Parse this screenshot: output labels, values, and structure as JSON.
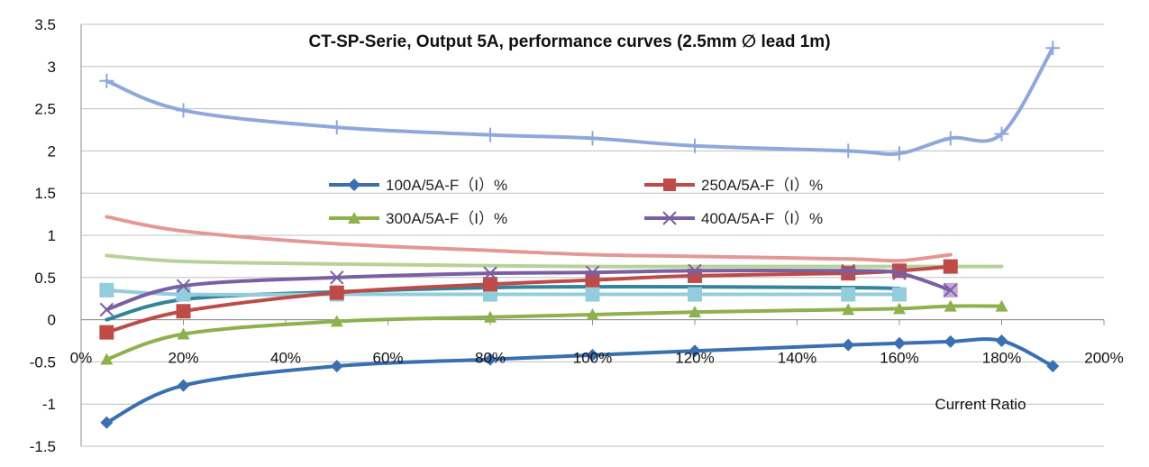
{
  "chart_data": {
    "type": "line",
    "title": "CT-SP-Serie, Output 5A, performance curves (2.5mm ∅ lead 1m)",
    "xlabel": "Current Ratio",
    "ylabel": "",
    "x_ticks": [
      "0%",
      "20%",
      "40%",
      "60%",
      "80%",
      "100%",
      "120%",
      "140%",
      "160%",
      "180%",
      "200%"
    ],
    "y_ticks": [
      "3.5",
      "3",
      "2.5",
      "2",
      "1.5",
      "1",
      "0.5",
      "0",
      "-0.5",
      "-1",
      "-1.5"
    ],
    "xlim": [
      0,
      200
    ],
    "ylim": [
      -1.5,
      3.5
    ],
    "grid": true,
    "legend_position": "center",
    "series": [
      {
        "name": "100A/5A-F（I）%",
        "color": "#3a6fb0",
        "marker": "diamond",
        "show_in_legend": true,
        "x": [
          5,
          20,
          50,
          80,
          100,
          120,
          150,
          160,
          170,
          180,
          190
        ],
        "y": [
          -1.22,
          -0.78,
          -0.55,
          -0.47,
          -0.42,
          -0.37,
          -0.3,
          -0.28,
          -0.26,
          -0.25,
          -0.55
        ]
      },
      {
        "name": "250A/5A-F（I）%",
        "color": "#be4b48",
        "marker": "square",
        "show_in_legend": true,
        "x": [
          5,
          20,
          50,
          80,
          100,
          120,
          150,
          160,
          170
        ],
        "y": [
          -0.15,
          0.1,
          0.32,
          0.42,
          0.47,
          0.52,
          0.55,
          0.58,
          0.63
        ]
      },
      {
        "name": "300A/5A-F（I）%",
        "color": "#8db14c",
        "marker": "triangle",
        "show_in_legend": true,
        "x": [
          5,
          20,
          50,
          80,
          100,
          120,
          150,
          160,
          170,
          180
        ],
        "y": [
          -0.47,
          -0.17,
          -0.02,
          0.03,
          0.06,
          0.09,
          0.12,
          0.13,
          0.16,
          0.16
        ]
      },
      {
        "name": "400A/5A-F（I）%",
        "color": "#7b5fa3",
        "marker": "x",
        "show_in_legend": true,
        "x": [
          5,
          20,
          50,
          80,
          100,
          120,
          150,
          160,
          170
        ],
        "y": [
          0.12,
          0.4,
          0.5,
          0.55,
          0.56,
          0.58,
          0.58,
          0.55,
          0.35
        ]
      },
      {
        "name": "",
        "color": "#8fa8dc",
        "marker": "plus",
        "show_in_legend": false,
        "x": [
          5,
          20,
          50,
          80,
          100,
          120,
          150,
          160,
          170,
          180,
          190
        ],
        "y": [
          2.83,
          2.48,
          2.28,
          2.19,
          2.15,
          2.06,
          2.0,
          1.97,
          2.15,
          2.2,
          3.22
        ]
      },
      {
        "name": "",
        "color": "#e39896",
        "marker": "none",
        "show_in_legend": false,
        "x": [
          5,
          20,
          50,
          80,
          100,
          120,
          150,
          160,
          170
        ],
        "y": [
          1.22,
          1.05,
          0.9,
          0.82,
          0.77,
          0.75,
          0.72,
          0.7,
          0.77
        ]
      },
      {
        "name": "",
        "color": "#b6d397",
        "marker": "none",
        "show_in_legend": false,
        "x": [
          5,
          20,
          50,
          80,
          100,
          120,
          150,
          160,
          170,
          180
        ],
        "y": [
          0.76,
          0.69,
          0.66,
          0.64,
          0.63,
          0.63,
          0.63,
          0.63,
          0.63,
          0.63
        ]
      },
      {
        "name": "",
        "color": "#31849b",
        "marker": "none",
        "show_in_legend": false,
        "x": [
          5,
          20,
          50,
          80,
          100,
          120,
          150,
          160
        ],
        "y": [
          0.0,
          0.24,
          0.33,
          0.38,
          0.39,
          0.39,
          0.38,
          0.37
        ]
      },
      {
        "name": "",
        "color": "#93cddd",
        "marker": "square",
        "show_in_legend": false,
        "x": [
          5,
          20,
          50,
          80,
          100,
          120,
          150,
          160
        ],
        "y": [
          0.35,
          0.3,
          0.3,
          0.3,
          0.3,
          0.3,
          0.3,
          0.3
        ]
      },
      {
        "name": "",
        "color": "#c3a7d8",
        "marker": "square",
        "show_in_legend": false,
        "x": [
          170
        ],
        "y": [
          0.35
        ]
      }
    ]
  }
}
